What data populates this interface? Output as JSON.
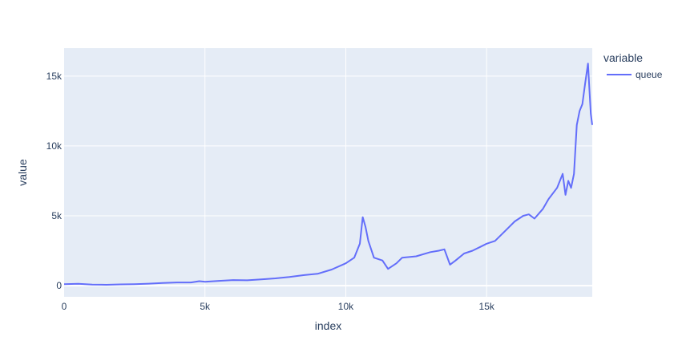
{
  "chart_data": {
    "type": "line",
    "title": "",
    "xlabel": "index",
    "ylabel": "value",
    "xlim": [
      0,
      18750
    ],
    "ylim": [
      -800,
      17000
    ],
    "x_ticks": [
      {
        "value": 0,
        "label": "0"
      },
      {
        "value": 5000,
        "label": "5k"
      },
      {
        "value": 10000,
        "label": "10k"
      },
      {
        "value": 15000,
        "label": "15k"
      }
    ],
    "y_ticks": [
      {
        "value": 0,
        "label": "0"
      },
      {
        "value": 5000,
        "label": "5k"
      },
      {
        "value": 10000,
        "label": "10k"
      },
      {
        "value": 15000,
        "label": "15k"
      }
    ],
    "grid": true,
    "legend": {
      "title": "variable",
      "placement": "top-right"
    },
    "series": [
      {
        "name": "queue",
        "color": "#636efa",
        "x": [
          0,
          500,
          1000,
          1500,
          2000,
          2500,
          3000,
          3500,
          4000,
          4500,
          4800,
          5000,
          5500,
          6000,
          6500,
          7000,
          7500,
          8000,
          8500,
          9000,
          9500,
          10000,
          10300,
          10500,
          10600,
          10700,
          10800,
          11000,
          11300,
          11500,
          11800,
          12000,
          12500,
          13000,
          13300,
          13500,
          13700,
          13900,
          14200,
          14500,
          14800,
          15000,
          15300,
          15700,
          16000,
          16300,
          16500,
          16700,
          17000,
          17200,
          17500,
          17700,
          17800,
          17900,
          18000,
          18100,
          18200,
          18300,
          18400,
          18500,
          18600,
          18650,
          18700,
          18750
        ],
        "values": [
          100,
          130,
          80,
          60,
          90,
          110,
          140,
          190,
          230,
          230,
          320,
          280,
          340,
          400,
          380,
          450,
          520,
          620,
          750,
          850,
          1150,
          1600,
          2000,
          3000,
          4900,
          4200,
          3200,
          2000,
          1800,
          1200,
          1600,
          2000,
          2100,
          2400,
          2500,
          2600,
          1500,
          1800,
          2300,
          2500,
          2800,
          3000,
          3200,
          4000,
          4600,
          5000,
          5100,
          4800,
          5500,
          6200,
          7000,
          8000,
          6500,
          7500,
          7000,
          8000,
          11500,
          12500,
          13000,
          14500,
          15900,
          14000,
          12300,
          11500
        ]
      }
    ]
  }
}
